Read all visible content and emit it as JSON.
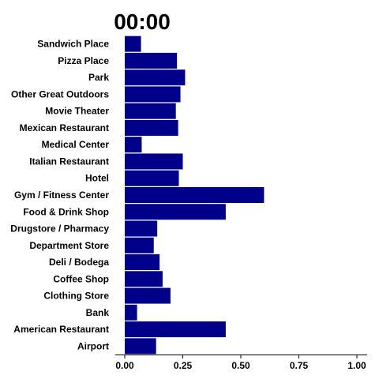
{
  "chart_data": {
    "type": "bar",
    "orientation": "horizontal",
    "title": "00:00",
    "xlabel": "",
    "ylabel": "",
    "categories": [
      "Sandwich Place",
      "Pizza Place",
      "Park",
      "Other Great Outdoors",
      "Movie Theater",
      "Mexican Restaurant",
      "Medical Center",
      "Italian Restaurant",
      "Hotel",
      "Gym / Fitness Center",
      "Food & Drink Shop",
      "Drugstore / Pharmacy",
      "Department Store",
      "Deli / Bodega",
      "Coffee Shop",
      "Clothing Store",
      "Bank",
      "American Restaurant",
      "Airport"
    ],
    "values": [
      0.07,
      0.225,
      0.26,
      0.24,
      0.22,
      0.23,
      0.073,
      0.25,
      0.233,
      0.6,
      0.435,
      0.14,
      0.125,
      0.15,
      0.163,
      0.197,
      0.053,
      0.435,
      0.135
    ],
    "xlim": [
      0,
      1
    ],
    "xticks": [
      0,
      0.25,
      0.5,
      0.75,
      1
    ],
    "xtick_labels": [
      "0.00",
      "0.25",
      "0.50",
      "0.75",
      "1.00"
    ],
    "grid": false,
    "legend": "none",
    "bar_color": "#00008B"
  }
}
